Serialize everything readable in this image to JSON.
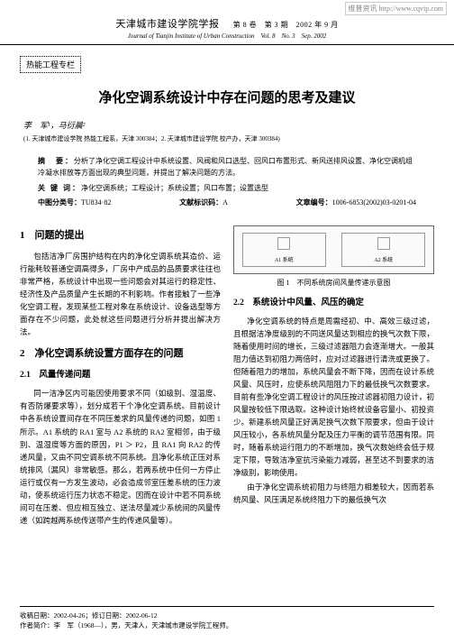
{
  "watermark": "维普资讯 http://www.cqvip.com",
  "header": {
    "journal_cn": "天津城市建设学院学报",
    "vol_issue": "第 8 卷　第 3 期　2002 年 9 月",
    "journal_en": "Journal of Tianjin Institute of Urban Construction　Vol. 8　No. 3　Sep. 2002"
  },
  "section_tag": "热能工程专栏",
  "title": "净化空调系统设计中存在问题的思考及建议",
  "authors": "李　军¹，马衍晨²",
  "affil": "(1. 天津城市建设学院 热能工程系，天津 300384；2. 天津城市建设学院 校产办，天津 300384)",
  "abstract": {
    "label": "摘　要：",
    "text": "分析了净化空调工程设计中系统设置、风阀和风口选型、回风口布置形式、新风送排风设置、净化空调机组冷凝水排放等方面出现的典型问题，并提出了解决问题的方法。"
  },
  "keywords": {
    "label": "关 键 词：",
    "text": "净化空调系统；工程设计；系统设置；风口布置；设置选型"
  },
  "class": {
    "clc_label": "中图分类号：",
    "clc": "TU834·82",
    "doc_label": "文献标识码：",
    "doc": "A",
    "id_label": "文章编号：",
    "id": "1006-6853(2002)03-0201-04"
  },
  "left": {
    "h1": "1　问题的提出",
    "p1": "包括洁净厂房围护结构在内的净化空调系统其造价、运行能耗较普通空调高得多，厂房中产成品的品质要求往往也非常严格，系统设计中出现一些问题会对其运行的稳定性、经济性及产品质量产生长期的不利影响。作者接触了一些净化空调工程，发现某些工程对象在系统设计、设备选型等方面存在不少问题，此处就这些问题进行分析并提出解决方法。",
    "h2a": "2　净化空调系统设置方面存在的问题",
    "h2b": "2.1　风量传递问题",
    "p2": "同一洁净区内可能因使用要求不同（如级别、湿温度、有否防爆要求等），划分成若干个净化空调系统。目前设计中各系统设置间存在不同压差求的风量传递的问题，如图 1 所示。A1 系统的 RA1 室与 A2 系统的 RA2 室相邻，由于级别、温湿度等方面的原因，P1 ＞ P2，且 RA1 向 RA2 的传递风量，又由不同空调系统不同系统。且净化系统正压对系统排风（漏风）非常敏感。那么，若两系统中任何一方停止运行或仅有一方发生波动，必会造成邻室压差系统的压力波动，使系统运行压力状态不稳定。因而在设计中若不同系统间可在压差、但应相互独立、送法尽量减少系统间的风量传递（如跨越两系统传送带产生的传递风量等）。"
  },
  "right": {
    "fig_a1": "A1 系统",
    "fig_a2": "A2 系统",
    "fig_caption": "图 1　不同系统房间风量传递示意图",
    "h2": "2.2　系统设计中风量、风压的确定",
    "p1": "净化空调系统的特点是周需经初、中、高效三级过滤，且根据洁净度级别的不同送风量达到相应的换气次数下限，随着使用时间的增长，三级过滤器阻力会逐渐增大。一般其阻力值达到初阻力两倍时，应对过滤器进行清洗或更换了。但随着阻力的增加，系统风量会不断下降，因而在设计系统风量、风压时，应使系统风阻阻力下的最低换气次数要求。目前有些净化空调工程设计的风压按过滤器初阻力设计，初风量按较低下限选取。这种设计始终就设备容量小、初投资少。新建系统风量正好满足换气次数下限要求，但由于设计风压较小，各系统风量分配及压力平衡的调节范围有限。同时，随着系统运行阻力的不断增加，换气次数始终会低于规定下限，导致洁净室抗污染能力减弱，甚至达不到要求的洁净级别，影响使用。",
    "p2": "由于净化空调系统初阻力与终阻力相差较大，因而若系统风量、风压满足系统终阻力下的最低换气次"
  },
  "footer": {
    "dates": "收稿日期：2002-04-26；修订日期：2002-06-12",
    "author_info": "作者简介：李　军（1968—），男，天津人，天津城市建设学院工程师。"
  }
}
